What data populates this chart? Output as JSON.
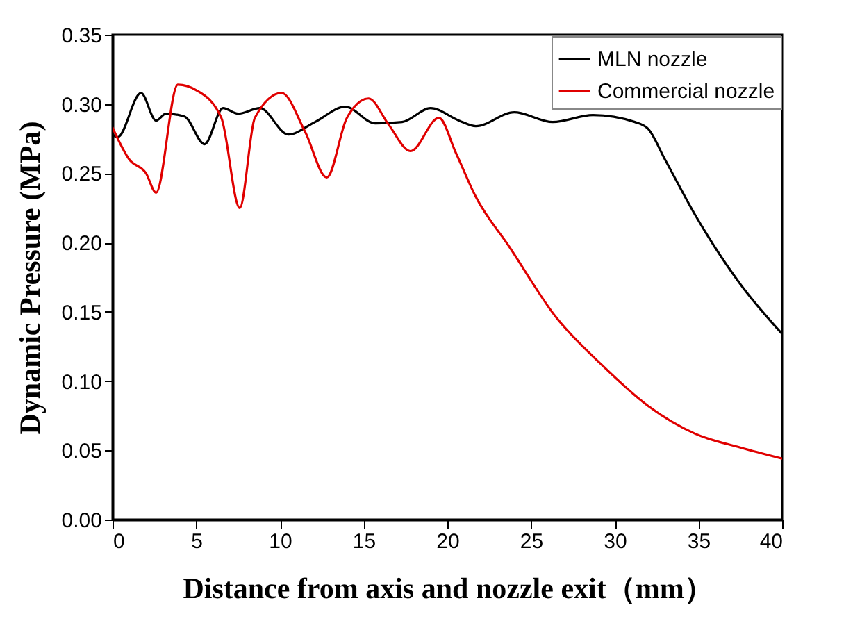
{
  "chart_data": {
    "type": "line",
    "xlabel": "Distance from axis and nozzle exit（mm）",
    "ylabel": "Dynamic Pressure (MPa)",
    "xlim": [
      0,
      40
    ],
    "xticks": [
      0,
      5,
      10,
      15,
      20,
      25,
      30,
      35,
      40
    ],
    "ylim": [
      0,
      0.35
    ],
    "yticks": [
      {
        "value": 0,
        "label": "0.00"
      },
      {
        "value": 0.05,
        "label": "0.05"
      },
      {
        "value": 0.1,
        "label": "0.10"
      },
      {
        "value": 0.15,
        "label": "0.15"
      },
      {
        "value": 0.2,
        "label": "0.20"
      },
      {
        "value": 0.25,
        "label": "0.25"
      },
      {
        "value": 0.3,
        "label": "0.30"
      },
      {
        "value": 0.35,
        "label": "0.35"
      }
    ],
    "legend": "top right",
    "grid": false,
    "line_style": "solid",
    "series": [
      {
        "name": "MLN nozzle",
        "color": "#000000",
        "x": [
          0,
          0.3,
          1.7,
          2.6,
          3.2,
          4.3,
          5.5,
          6.6,
          7.5,
          8.8,
          10.5,
          12.1,
          13.9,
          15.7,
          17.3,
          19,
          20.7,
          21.7,
          24,
          26.3,
          28.7,
          31.2,
          32,
          33,
          34.8,
          37.5,
          40
        ],
        "values": [
          0.278,
          0.276,
          0.308,
          0.288,
          0.293,
          0.291,
          0.271,
          0.297,
          0.293,
          0.297,
          0.278,
          0.287,
          0.298,
          0.286,
          0.287,
          0.297,
          0.288,
          0.284,
          0.294,
          0.287,
          0.292,
          0.287,
          0.282,
          0.26,
          0.22,
          0.17,
          0.134
        ]
      },
      {
        "name": "Commercial nozzle",
        "color": "#e00000",
        "x": [
          0,
          1,
          2,
          2.6,
          3.9,
          5,
          6.5,
          7.6,
          8.5,
          10.1,
          11.5,
          12.8,
          14,
          15.3,
          16.5,
          17.8,
          19.5,
          20.5,
          21.7,
          23.7,
          26.5,
          29.2,
          32,
          34.8,
          37.5,
          40
        ],
        "values": [
          0.283,
          0.26,
          0.25,
          0.236,
          0.314,
          0.31,
          0.29,
          0.225,
          0.29,
          0.308,
          0.28,
          0.247,
          0.29,
          0.304,
          0.285,
          0.266,
          0.29,
          0.265,
          0.233,
          0.197,
          0.146,
          0.112,
          0.082,
          0.062,
          0.052,
          0.044
        ]
      }
    ]
  }
}
